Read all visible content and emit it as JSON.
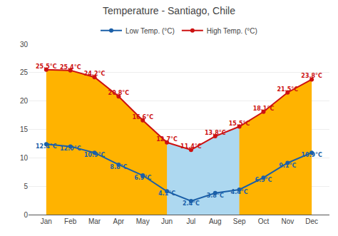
{
  "chart_data": {
    "type": "line",
    "title": "Temperature - Santiago, Chile",
    "categories": [
      "Jan",
      "Feb",
      "Mar",
      "Apr",
      "May",
      "Jun",
      "Jul",
      "Aug",
      "Sep",
      "Oct",
      "Nov",
      "Dec"
    ],
    "series": [
      {
        "type": "area",
        "color": "#ffb300",
        "values": [
          25.5,
          25.4,
          24.2,
          20.8,
          16.6,
          12.7,
          11.4,
          13.8,
          15.5,
          18.1,
          21.5,
          23.8
        ]
      },
      {
        "type": "area",
        "color": "#add8f0",
        "values": [
          null,
          null,
          null,
          null,
          null,
          12.7,
          11.4,
          13.8,
          15.5,
          null,
          null,
          null
        ]
      },
      {
        "type": "line",
        "name": "High Temp. (°C)",
        "color": "#cc1111",
        "marker": "circle",
        "values": [
          25.5,
          25.4,
          24.2,
          20.8,
          16.6,
          12.7,
          11.4,
          13.8,
          15.5,
          18.1,
          21.5,
          23.8
        ],
        "value_labels": [
          "25.5°C",
          "25.4°C",
          "24.2°C",
          "20.8°C",
          "16.6°C",
          "12.7°C",
          "11.4°C",
          "13.8°C",
          "15.5°C",
          "18.1°C",
          "21.5°C",
          "23.8°C"
        ]
      },
      {
        "type": "line",
        "name": "Low Temp. (°C)",
        "color": "#1a5fa8",
        "marker": "circle",
        "values": [
          12.4,
          12.0,
          10.9,
          8.8,
          6.9,
          4.1,
          2.4,
          3.8,
          4.4,
          6.5,
          9.1,
          10.9
        ],
        "value_labels": [
          "12.4°C",
          "12.0°C",
          "10.9°C",
          "8.8°C",
          "6.9°C",
          "4.1°C",
          "2.4°C",
          "3.8°C",
          "4.4°C",
          "6.5°C",
          "9.1°C",
          "10.9°C"
        ]
      }
    ],
    "ylim": [
      0,
      30
    ],
    "yticks": [
      0,
      5,
      10,
      15,
      20,
      25,
      30
    ],
    "grid": true,
    "legend": "top",
    "data_labels": true
  }
}
